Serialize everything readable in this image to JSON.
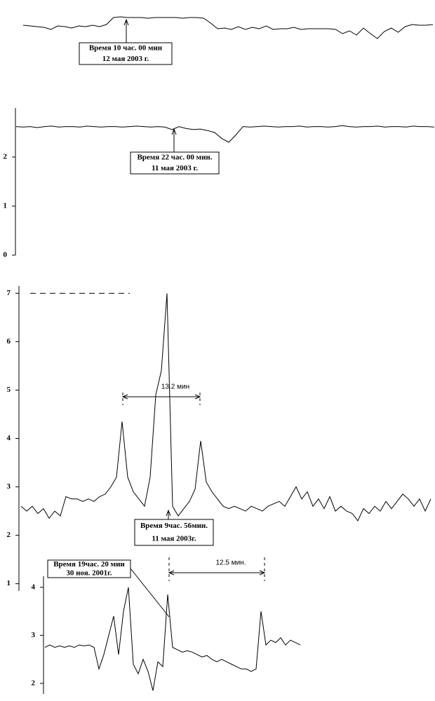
{
  "chart_data": [
    {
      "type": "line",
      "ylim": [
        0,
        40
      ],
      "values": [
        24,
        23,
        22,
        21,
        18,
        23,
        22,
        20,
        23,
        22,
        24,
        22,
        25,
        35,
        36,
        35,
        35,
        35,
        34,
        35,
        35,
        35,
        35,
        34,
        35,
        35,
        34,
        27,
        19,
        20,
        18,
        22,
        18,
        21,
        19,
        23,
        18,
        19,
        19,
        21,
        18,
        19,
        19,
        19,
        19,
        18,
        12,
        16,
        10,
        20,
        12,
        5,
        15,
        20,
        14,
        22,
        25,
        24,
        24,
        25
      ],
      "annotations": [
        {
          "lines": [
            "Время  10 час. 00 мин",
            "12 мая  2003 г."
          ]
        }
      ]
    },
    {
      "type": "line",
      "ylim": [
        0,
        3
      ],
      "yticks": [
        0,
        1,
        2
      ],
      "values": [
        2.62,
        2.61,
        2.62,
        2.6,
        2.62,
        2.63,
        2.61,
        2.62,
        2.62,
        2.61,
        2.63,
        2.62,
        2.61,
        2.62,
        2.62,
        2.61,
        2.62,
        2.63,
        2.62,
        2.61,
        2.62,
        2.61,
        2.56,
        2.62,
        2.58,
        2.56,
        2.57,
        2.54,
        2.5,
        2.38,
        2.3,
        2.45,
        2.62,
        2.61,
        2.62,
        2.63,
        2.62,
        2.61,
        2.62,
        2.62,
        2.63,
        2.61,
        2.62,
        2.62,
        2.61,
        2.62,
        2.64,
        2.62,
        2.61,
        2.62,
        2.62,
        2.63,
        2.61,
        2.62,
        2.62,
        2.61,
        2.63,
        2.62,
        2.62,
        2.61
      ],
      "annotations": [
        {
          "lines": [
            "Время 22 час. 00 мин.",
            "11 мая 2003 г."
          ]
        }
      ]
    },
    {
      "type": "line",
      "ylim": [
        0.85,
        7.15
      ],
      "yticks": [
        1,
        2,
        3,
        4,
        5,
        6,
        7
      ],
      "hline": 7,
      "values": [
        2.6,
        2.5,
        2.6,
        2.45,
        2.55,
        2.35,
        2.5,
        2.4,
        2.8,
        2.75,
        2.75,
        2.7,
        2.75,
        2.7,
        2.8,
        2.85,
        3.0,
        3.2,
        4.35,
        3.2,
        2.9,
        2.75,
        2.6,
        3.2,
        4.9,
        5.4,
        7.0,
        2.6,
        2.4,
        2.55,
        2.7,
        2.95,
        3.95,
        3.1,
        2.9,
        2.75,
        2.6,
        2.55,
        2.6,
        2.55,
        2.5,
        2.6,
        2.55,
        2.5,
        2.6,
        2.65,
        2.7,
        2.6,
        2.8,
        3.0,
        2.75,
        2.9,
        2.6,
        2.75,
        2.55,
        2.8,
        2.5,
        2.6,
        2.5,
        2.45,
        2.3,
        2.55,
        2.45,
        2.6,
        2.5,
        2.7,
        2.55,
        2.7,
        2.85,
        2.75,
        2.6,
        2.75,
        2.5,
        2.75
      ],
      "span_label": "13.2 мин",
      "annotations": [
        {
          "lines": [
            "Время 9час. 56мин.",
            "11 мая 2003г."
          ]
        }
      ]
    },
    {
      "type": "line",
      "ylim": [
        1.78,
        4.23
      ],
      "yticks": [
        2,
        3,
        4
      ],
      "values": [
        2.75,
        2.8,
        2.75,
        2.78,
        2.75,
        2.78,
        2.75,
        2.8,
        2.78,
        2.8,
        2.75,
        2.3,
        2.6,
        3.0,
        3.4,
        2.6,
        3.5,
        4.0,
        2.4,
        2.2,
        2.5,
        2.25,
        1.85,
        2.45,
        2.35,
        3.85,
        2.75,
        2.7,
        2.65,
        2.68,
        2.65,
        2.6,
        2.55,
        2.58,
        2.5,
        2.45,
        2.5,
        2.45,
        2.4,
        2.35,
        2.3,
        2.3,
        2.25,
        2.3,
        3.5,
        2.8,
        2.9,
        2.85,
        2.95,
        2.8,
        2.9,
        2.85,
        2.8
      ],
      "span_label": "12.5 мин.",
      "annotations": [
        {
          "lines": [
            "Время 19час. 20 мин",
            "30 ноя.  2001г."
          ]
        }
      ]
    }
  ]
}
